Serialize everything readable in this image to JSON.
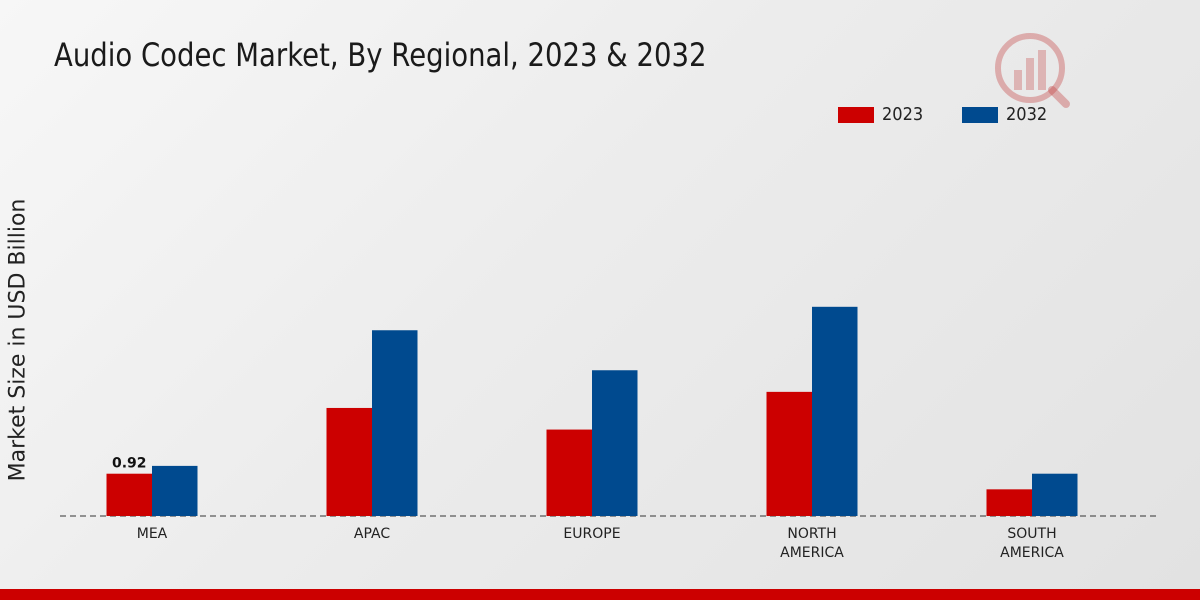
{
  "chart_data": {
    "type": "bar",
    "title": "Audio Codec Market, By Regional, 2023 & 2032",
    "xlabel": "",
    "ylabel": "Market Size in USD Billion",
    "categories": [
      "MEA",
      "APAC",
      "EUROPE",
      "NORTH\nAMERICA",
      "SOUTH\nAMERICA"
    ],
    "series": [
      {
        "name": "2023",
        "color": "#cc0000",
        "values": [
          0.92,
          2.35,
          1.88,
          2.7,
          0.58
        ]
      },
      {
        "name": "2032",
        "color": "#004a8f",
        "values": [
          1.09,
          4.04,
          3.17,
          4.55,
          0.92
        ]
      }
    ],
    "data_labels": [
      {
        "series": 0,
        "index": 0,
        "text": "0.92"
      }
    ],
    "ylim": [
      0,
      8.7
    ],
    "grid": false,
    "legend_position": "top-right"
  },
  "colors": {
    "accent_bar": "#cc0000",
    "logo": "#c23a3a"
  }
}
